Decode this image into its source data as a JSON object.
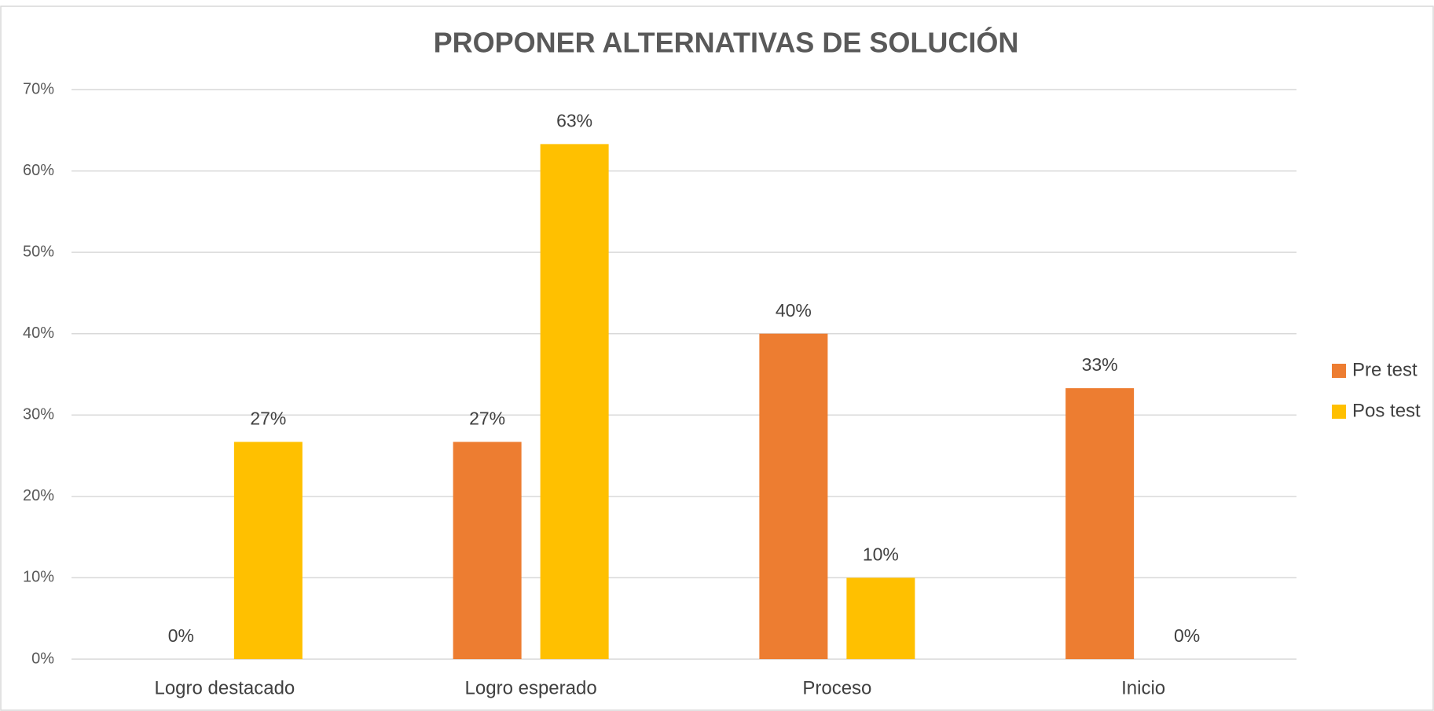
{
  "chart_data": {
    "type": "bar",
    "title": "PROPONER ALTERNATIVAS DE SOLUCIÓN",
    "categories": [
      "Logro destacado",
      "Logro esperado",
      "Proceso",
      "Inicio"
    ],
    "series": [
      {
        "name": "Pre test",
        "color": "#ed7d31",
        "values": [
          0,
          26.7,
          40,
          33.3
        ],
        "value_labels": [
          "0%",
          "27%",
          "40%",
          "33%"
        ]
      },
      {
        "name": "Pos test",
        "color": "#ffc000",
        "values": [
          26.7,
          63.3,
          10,
          0
        ],
        "value_labels": [
          "27%",
          "63%",
          "10%",
          "0%"
        ]
      }
    ],
    "ylim": [
      0,
      70
    ],
    "yticks": [
      {
        "value": 0,
        "label": "0%"
      },
      {
        "value": 10,
        "label": "10%"
      },
      {
        "value": 20,
        "label": "20%"
      },
      {
        "value": 30,
        "label": "30%"
      },
      {
        "value": 40,
        "label": "40%"
      },
      {
        "value": 50,
        "label": "50%"
      },
      {
        "value": 60,
        "label": "60%"
      },
      {
        "value": 70,
        "label": "70%"
      }
    ],
    "grid": true,
    "legend": "right"
  }
}
